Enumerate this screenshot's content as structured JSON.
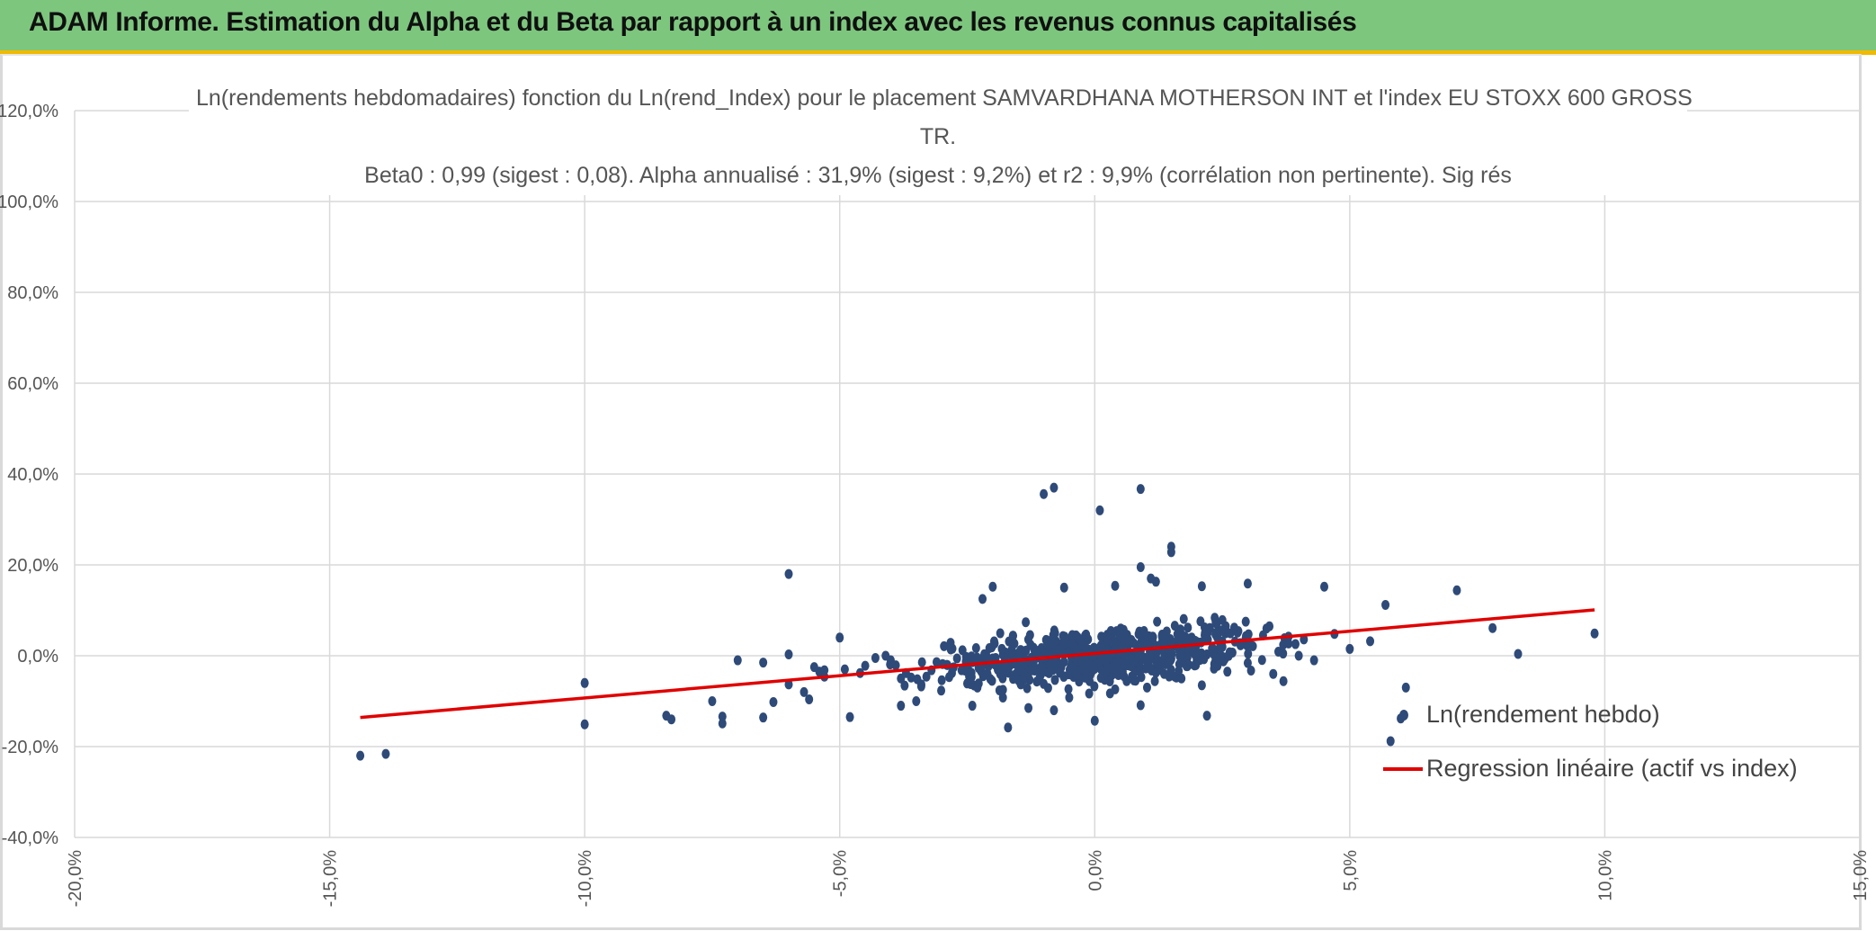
{
  "header": {
    "title": "ADAM Informe. Estimation du Alpha et du Beta par rapport à un index avec les revenus connus capitalisés"
  },
  "colors": {
    "banner": "#7dc67e",
    "accent": "#f2b900",
    "points": "#2e4a78",
    "regression": "#e00000",
    "grid": "#d9d9d9"
  },
  "chart_data": {
    "type": "scatter",
    "title_lines": [
      "Ln(rendements hebdomadaires) fonction du Ln(rend_Index) pour le placement SAMVARDHANA MOTHERSON INT et l'index EU STOXX 600 GROSS",
      "TR.",
      "Beta0 : 0,99 (sigest : 0,08). Alpha annualisé : 31,9% (sigest : 9,2%) et r2 : 9,9% (corrélation non pertinente). Sig rés"
    ],
    "x_axis": {
      "min": -20,
      "max": 15,
      "step": 5,
      "unit": "%",
      "tick_labels": [
        "-20,0%",
        "-15,0%",
        "-10,0%",
        "-5,0%",
        "0,0%",
        "5,0%",
        "10,0%",
        "15,0%"
      ],
      "grid": true
    },
    "y_axis": {
      "min": -40,
      "max": 120,
      "step": 20,
      "unit": "%",
      "tick_labels": [
        "-40,0%",
        "-20,0%",
        "0,0%",
        "20,0%",
        "40,0%",
        "60,0%",
        "80,0%",
        "100,0%",
        "120,0%"
      ],
      "grid": true
    },
    "legend_position": "bottom-right",
    "series": [
      {
        "name": "Ln(rendement hebdo)",
        "kind": "scatter",
        "color": "#2e4a78",
        "points": [
          [
            -14.4,
            -22.0
          ],
          [
            -13.9,
            -21.6
          ],
          [
            -10.0,
            -15.1
          ],
          [
            -10.0,
            -6.0
          ],
          [
            -8.4,
            -13.2
          ],
          [
            -8.3,
            -14.0
          ],
          [
            -7.5,
            -10.0
          ],
          [
            -7.3,
            -13.4
          ],
          [
            -7.3,
            -14.9
          ],
          [
            -7.0,
            -1.0
          ],
          [
            -6.5,
            -1.5
          ],
          [
            -6.5,
            -13.6
          ],
          [
            -6.3,
            -10.2
          ],
          [
            -6.0,
            18.0
          ],
          [
            -6.0,
            0.3
          ],
          [
            -6.0,
            -6.3
          ],
          [
            -5.7,
            -8.0
          ],
          [
            -5.6,
            -9.6
          ],
          [
            -5.5,
            -2.5
          ],
          [
            -5.4,
            -3.5
          ],
          [
            -5.3,
            -3.2
          ],
          [
            -5.3,
            -4.6
          ],
          [
            -5.0,
            4.0
          ],
          [
            -4.9,
            -3.0
          ],
          [
            -4.8,
            -13.5
          ],
          [
            -4.6,
            -3.8
          ],
          [
            -4.5,
            -2.2
          ],
          [
            -4.3,
            -0.5
          ],
          [
            -4.1,
            0.0
          ],
          [
            -4.0,
            -1.0
          ],
          [
            -3.9,
            -2.1
          ],
          [
            -3.8,
            -5.0
          ],
          [
            -3.8,
            -11.0
          ],
          [
            -3.7,
            -3.8
          ],
          [
            -3.6,
            -4.8
          ],
          [
            -3.5,
            -10.0
          ],
          [
            -3.4,
            -6.3
          ],
          [
            -3.3,
            -4.6
          ],
          [
            -3.2,
            -3.2
          ],
          [
            -3.1,
            -1.4
          ],
          [
            -3.0,
            -5.4
          ],
          [
            -2.9,
            -2.0
          ],
          [
            -2.8,
            -3.8
          ],
          [
            -2.7,
            -0.6
          ],
          [
            -2.6,
            -3.1
          ],
          [
            -2.5,
            -6.1
          ],
          [
            -2.4,
            -11.0
          ],
          [
            -2.3,
            -7.0
          ],
          [
            -2.2,
            -1.8
          ],
          [
            -2.1,
            -4.2
          ],
          [
            -2.0,
            -0.6
          ],
          [
            -1.9,
            -3.1
          ],
          [
            -1.8,
            -7.5
          ],
          [
            -1.8,
            -9.2
          ],
          [
            -1.7,
            -15.8
          ],
          [
            -1.6,
            -5.1
          ],
          [
            -1.6,
            4.4
          ],
          [
            -1.5,
            -2.0
          ],
          [
            -1.4,
            -0.3
          ],
          [
            -1.3,
            -3.8
          ],
          [
            -1.2,
            -1.5
          ],
          [
            -1.1,
            1.1
          ],
          [
            -1.0,
            -6.2
          ],
          [
            -1.0,
            -3.2
          ],
          [
            -1.0,
            35.6
          ],
          [
            -0.9,
            -1.3
          ],
          [
            -0.8,
            37.0
          ],
          [
            -0.8,
            -12.0
          ],
          [
            -0.7,
            -2.5
          ],
          [
            -0.6,
            0.8
          ],
          [
            -0.5,
            -4.1
          ],
          [
            -0.5,
            -9.2
          ],
          [
            -0.4,
            -1.6
          ],
          [
            -0.3,
            2.0
          ],
          [
            -0.2,
            -0.8
          ],
          [
            -0.1,
            -5.6
          ],
          [
            0.0,
            -14.3
          ],
          [
            0.0,
            -0.3
          ],
          [
            0.1,
            1.7
          ],
          [
            0.1,
            32.0
          ],
          [
            0.2,
            -2.5
          ],
          [
            0.3,
            -0.8
          ],
          [
            0.4,
            -7.4
          ],
          [
            0.4,
            0.8
          ],
          [
            0.5,
            -2.1
          ],
          [
            0.6,
            2.4
          ],
          [
            0.7,
            -1.3
          ],
          [
            0.8,
            -5.5
          ],
          [
            0.9,
            0.9
          ],
          [
            0.9,
            36.7
          ],
          [
            0.9,
            -10.9
          ],
          [
            1.0,
            -2.8
          ],
          [
            1.1,
            0.4
          ],
          [
            1.2,
            -3.7
          ],
          [
            1.3,
            2.6
          ],
          [
            1.4,
            -0.8
          ],
          [
            1.5,
            24.0
          ],
          [
            1.6,
            -4.8
          ],
          [
            1.7,
            1.3
          ],
          [
            1.8,
            -2.3
          ],
          [
            1.9,
            4.0
          ],
          [
            2.0,
            -1.0
          ],
          [
            2.1,
            -6.5
          ],
          [
            2.2,
            -13.2
          ],
          [
            2.3,
            1.6
          ],
          [
            2.4,
            -0.3
          ],
          [
            2.5,
            3.2
          ],
          [
            2.6,
            -3.5
          ],
          [
            2.7,
            0.7
          ],
          [
            2.8,
            5.1
          ],
          [
            3.0,
            -1.6
          ],
          [
            3.1,
            2.1
          ],
          [
            3.3,
            4.5
          ],
          [
            3.5,
            -4.0
          ],
          [
            3.6,
            0.9
          ],
          [
            3.7,
            -5.6
          ],
          [
            3.8,
            2.7
          ],
          [
            4.0,
            0.0
          ],
          [
            4.1,
            3.6
          ],
          [
            4.3,
            -1.0
          ],
          [
            4.5,
            15.2
          ],
          [
            4.7,
            4.8
          ],
          [
            5.0,
            1.5
          ],
          [
            5.4,
            3.2
          ],
          [
            5.7,
            11.2
          ],
          [
            5.8,
            -18.8
          ],
          [
            6.0,
            -13.8
          ],
          [
            6.1,
            -7.0
          ],
          [
            7.1,
            14.4
          ],
          [
            7.8,
            6.1
          ],
          [
            8.3,
            0.4
          ],
          [
            9.8,
            4.9
          ],
          [
            -0.6,
            15.0
          ],
          [
            0.4,
            15.4
          ],
          [
            1.2,
            16.3
          ],
          [
            2.1,
            15.3
          ],
          [
            3.0,
            15.9
          ],
          [
            -2.0,
            15.2
          ],
          [
            -2.2,
            12.5
          ],
          [
            0.9,
            19.5
          ],
          [
            1.5,
            22.8
          ],
          [
            1.1,
            17.0
          ],
          [
            0.3,
            -8.3
          ],
          [
            -1.3,
            -11.5
          ]
        ]
      },
      {
        "name": "Regression linéaire (actif vs index)",
        "kind": "line",
        "color": "#e00000",
        "points": [
          [
            -14.4,
            -13.6
          ],
          [
            9.8,
            10.1
          ]
        ]
      }
    ]
  },
  "legend": {
    "items": [
      {
        "label": "Ln(rendement hebdo)"
      },
      {
        "label": "Regression linéaire (actif vs index)"
      }
    ]
  }
}
